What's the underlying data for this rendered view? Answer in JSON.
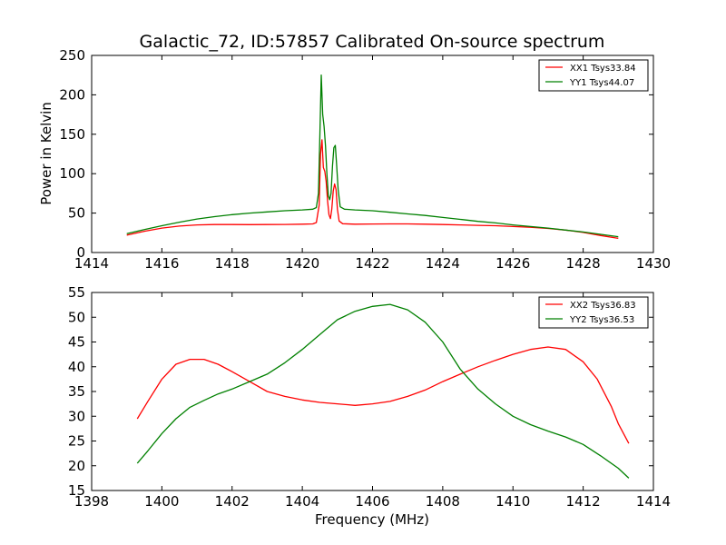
{
  "chart_data": [
    {
      "type": "line",
      "title": "Galactic_72, ID:57857 Calibrated On-source spectrum",
      "xlabel": "",
      "ylabel": "Power in Kelvin",
      "xlim": [
        1414,
        1430
      ],
      "ylim": [
        0,
        250
      ],
      "xticks": [
        1414,
        1416,
        1418,
        1420,
        1422,
        1424,
        1426,
        1428,
        1430
      ],
      "yticks": [
        0,
        50,
        100,
        150,
        200,
        250
      ],
      "grid": false,
      "legend_position": "top-right",
      "series": [
        {
          "name": "XX1 Tsys33.84",
          "color": "#ff0000",
          "x": [
            1415.0,
            1415.5,
            1416.0,
            1416.5,
            1417.0,
            1417.5,
            1418.0,
            1418.5,
            1419.0,
            1419.5,
            1420.0,
            1420.3,
            1420.4,
            1420.48,
            1420.52,
            1420.56,
            1420.6,
            1420.64,
            1420.68,
            1420.72,
            1420.76,
            1420.8,
            1420.84,
            1420.88,
            1420.92,
            1420.96,
            1421.0,
            1421.05,
            1421.15,
            1421.5,
            1422.0,
            1422.5,
            1423.0,
            1423.5,
            1424.0,
            1424.5,
            1425.0,
            1425.5,
            1426.0,
            1426.5,
            1427.0,
            1427.5,
            1428.0,
            1428.5,
            1429.0
          ],
          "values": [
            22,
            27,
            31,
            33.5,
            35,
            35.5,
            35.5,
            35.4,
            35.5,
            35.6,
            36,
            36.3,
            38,
            60,
            125,
            143,
            108,
            103,
            90,
            65,
            48,
            43,
            55,
            78,
            87,
            80,
            55,
            40,
            36.5,
            36,
            36.2,
            36.3,
            36.3,
            36,
            35.5,
            35,
            34.5,
            34,
            33,
            32,
            30.5,
            28.5,
            25.5,
            21.5,
            18
          ]
        },
        {
          "name": "YY1 Tsys44.07",
          "color": "#008000",
          "x": [
            1415.0,
            1415.5,
            1416.0,
            1416.5,
            1417.0,
            1417.5,
            1418.0,
            1418.5,
            1419.0,
            1419.5,
            1420.0,
            1420.3,
            1420.4,
            1420.46,
            1420.5,
            1420.54,
            1420.58,
            1420.62,
            1420.66,
            1420.7,
            1420.74,
            1420.78,
            1420.82,
            1420.86,
            1420.9,
            1420.94,
            1420.98,
            1421.02,
            1421.08,
            1421.2,
            1421.5,
            1422.0,
            1422.5,
            1423.0,
            1423.5,
            1424.0,
            1424.5,
            1425.0,
            1425.5,
            1426.0,
            1426.5,
            1427.0,
            1427.5,
            1428.0,
            1428.5,
            1429.0
          ],
          "values": [
            24,
            29,
            34,
            38.5,
            42.5,
            45.5,
            48,
            50,
            51.5,
            53,
            54,
            55,
            57,
            75,
            150,
            225,
            175,
            160,
            135,
            100,
            72,
            67,
            75,
            110,
            133,
            136,
            110,
            80,
            58,
            55,
            54,
            53,
            51,
            49,
            47,
            44.5,
            42,
            39.5,
            37.5,
            35,
            33,
            31,
            28.5,
            26,
            23,
            20
          ]
        }
      ]
    },
    {
      "type": "line",
      "title": "",
      "xlabel": "Frequency (MHz)",
      "ylabel": "",
      "xlim": [
        1398,
        1414
      ],
      "ylim": [
        15,
        55
      ],
      "xticks": [
        1398,
        1400,
        1402,
        1404,
        1406,
        1408,
        1410,
        1412,
        1414
      ],
      "yticks": [
        15,
        20,
        25,
        30,
        35,
        40,
        45,
        50,
        55
      ],
      "grid": false,
      "legend_position": "top-right",
      "series": [
        {
          "name": "XX2 Tsys36.83",
          "color": "#ff0000",
          "x": [
            1399.3,
            1399.6,
            1400.0,
            1400.4,
            1400.8,
            1401.2,
            1401.6,
            1402.0,
            1402.5,
            1403.0,
            1403.5,
            1404.0,
            1404.5,
            1405.0,
            1405.5,
            1406.0,
            1406.5,
            1407.0,
            1407.5,
            1408.0,
            1408.5,
            1409.0,
            1409.5,
            1410.0,
            1410.5,
            1411.0,
            1411.5,
            1412.0,
            1412.4,
            1412.8,
            1413.0,
            1413.3
          ],
          "values": [
            29.5,
            33,
            37.5,
            40.5,
            41.5,
            41.5,
            40.5,
            39,
            37,
            35,
            34,
            33.3,
            32.8,
            32.5,
            32.2,
            32.5,
            33,
            34,
            35.3,
            37,
            38.5,
            40,
            41.3,
            42.5,
            43.5,
            44,
            43.5,
            41,
            37.5,
            32,
            28.5,
            24.5
          ]
        },
        {
          "name": "YY2 Tsys36.53",
          "color": "#008000",
          "x": [
            1399.3,
            1399.6,
            1400.0,
            1400.4,
            1400.8,
            1401.2,
            1401.6,
            1402.0,
            1402.5,
            1403.0,
            1403.5,
            1404.0,
            1404.5,
            1405.0,
            1405.5,
            1406.0,
            1406.5,
            1407.0,
            1407.5,
            1408.0,
            1408.5,
            1409.0,
            1409.5,
            1410.0,
            1410.5,
            1411.0,
            1411.5,
            1412.0,
            1412.5,
            1413.0,
            1413.3
          ],
          "values": [
            20.5,
            23,
            26.5,
            29.5,
            31.8,
            33.2,
            34.5,
            35.5,
            37,
            38.5,
            40.8,
            43.5,
            46.5,
            49.5,
            51.2,
            52.2,
            52.6,
            51.5,
            49,
            45,
            39.5,
            35.5,
            32.5,
            30,
            28.3,
            27,
            25.8,
            24.3,
            22,
            19.5,
            17.5
          ]
        }
      ]
    }
  ]
}
